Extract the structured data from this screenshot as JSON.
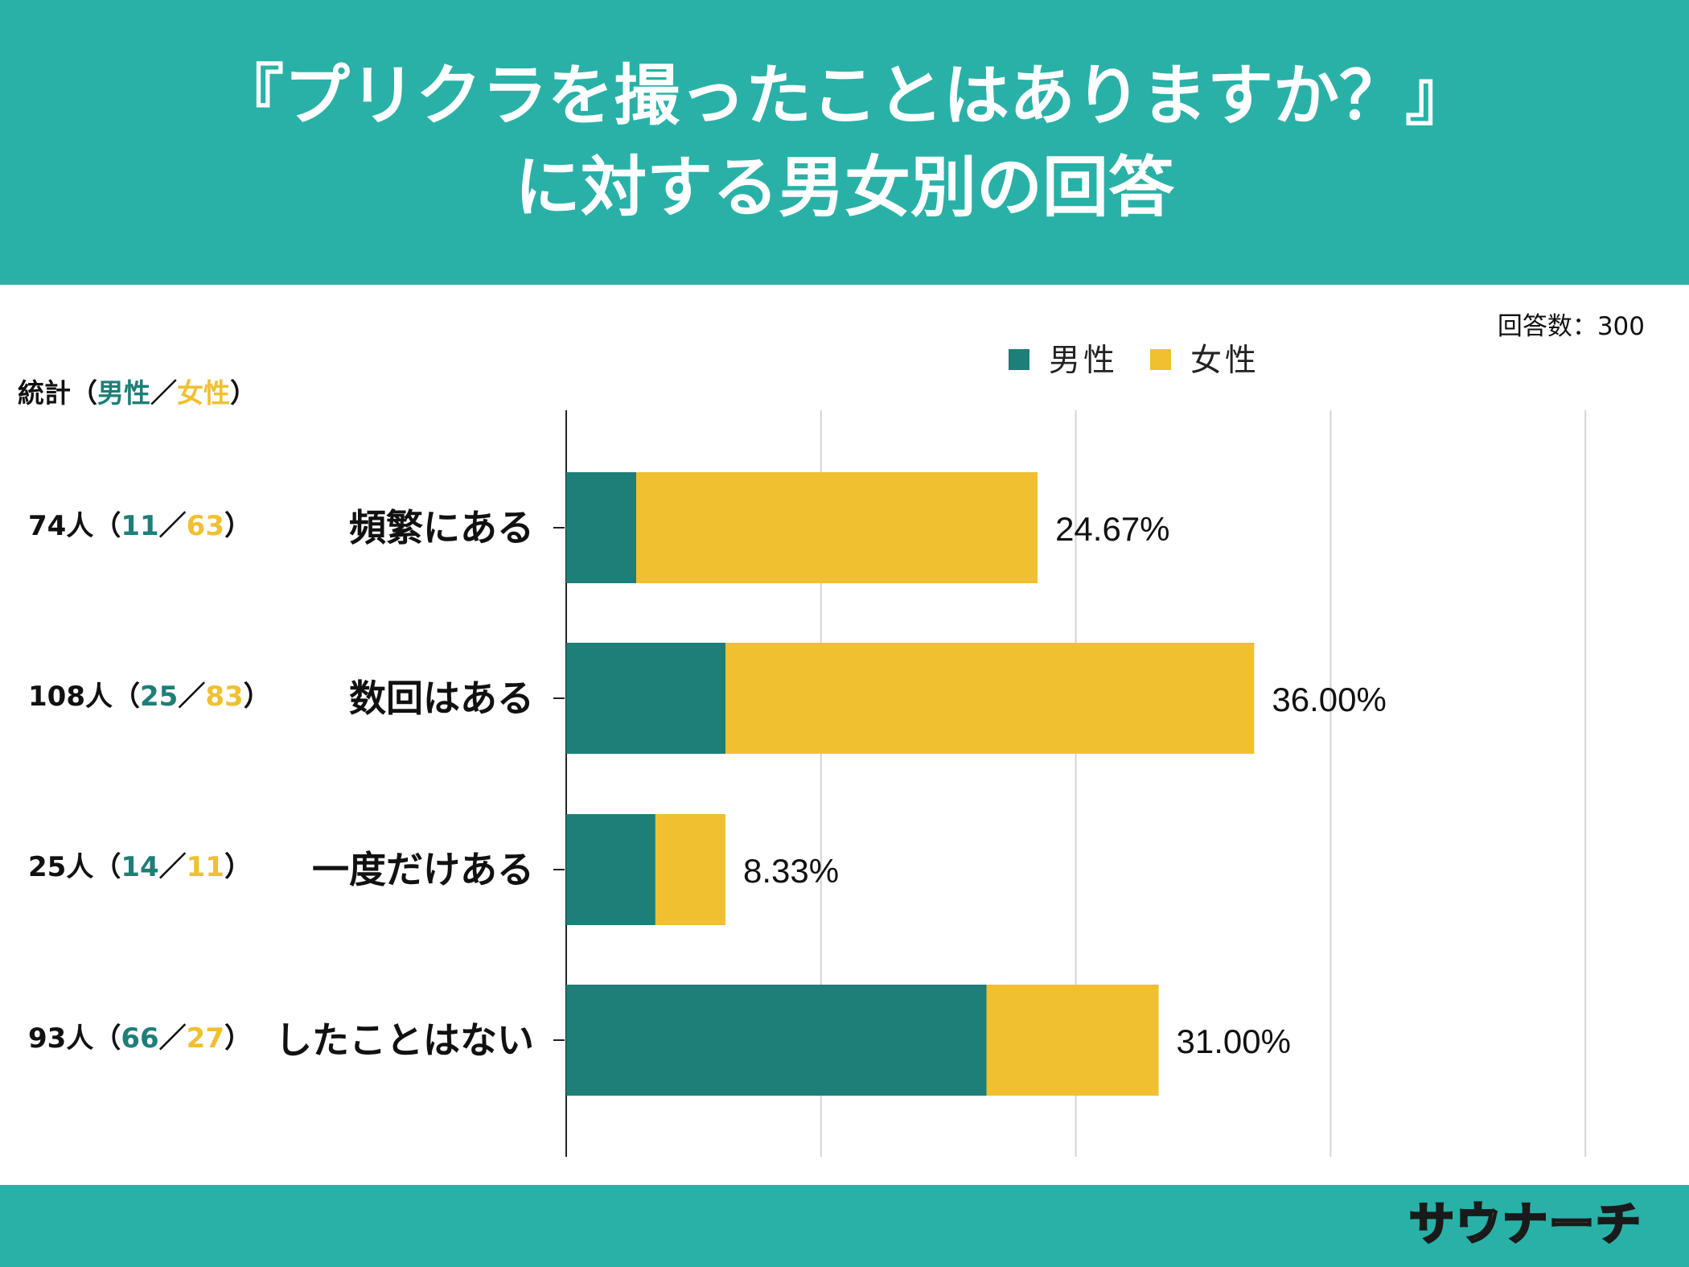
{
  "title": {
    "line1": "『プリクラを撮ったことはありますか？』",
    "line2": "に対する男女別の回答"
  },
  "respondents_label": "回答数：300",
  "stats_header": {
    "prefix": "統計（",
    "male": "男性",
    "sep": "／",
    "female": "女性",
    "suffix": "）"
  },
  "stats": [
    {
      "total": "74人",
      "open": "（",
      "male": "11",
      "sep": "／",
      "female": "63",
      "close": "）"
    },
    {
      "total": "108人",
      "open": "（",
      "male": "25",
      "sep": "／",
      "female": "83",
      "close": "）"
    },
    {
      "total": "25人",
      "open": "（",
      "male": "14",
      "sep": "／",
      "female": "11",
      "close": "）"
    },
    {
      "total": "93人",
      "open": "（",
      "male": "66",
      "sep": "／",
      "female": "27",
      "close": "）"
    }
  ],
  "chart_data": {
    "type": "bar",
    "orientation": "horizontal",
    "stacked": true,
    "categories": [
      "頻繁にある",
      "数回はある",
      "一度だけある",
      "したことはない"
    ],
    "series": [
      {
        "name": "男性",
        "color": "#1d7f78",
        "values": [
          11,
          25,
          14,
          66
        ]
      },
      {
        "name": "女性",
        "color": "#f0c030",
        "values": [
          63,
          83,
          11,
          27
        ]
      }
    ],
    "data_labels": [
      "24.67%",
      "36.00%",
      "8.33%",
      "31.00%"
    ],
    "xlim": [
      0,
      160
    ],
    "grid_step": 40,
    "legend": "top-center",
    "grid": true
  },
  "colors": {
    "header": "#29b1a8",
    "male": "#1d7f78",
    "female": "#f0c030"
  },
  "footer": {
    "logo_text": "サウナーチ"
  }
}
